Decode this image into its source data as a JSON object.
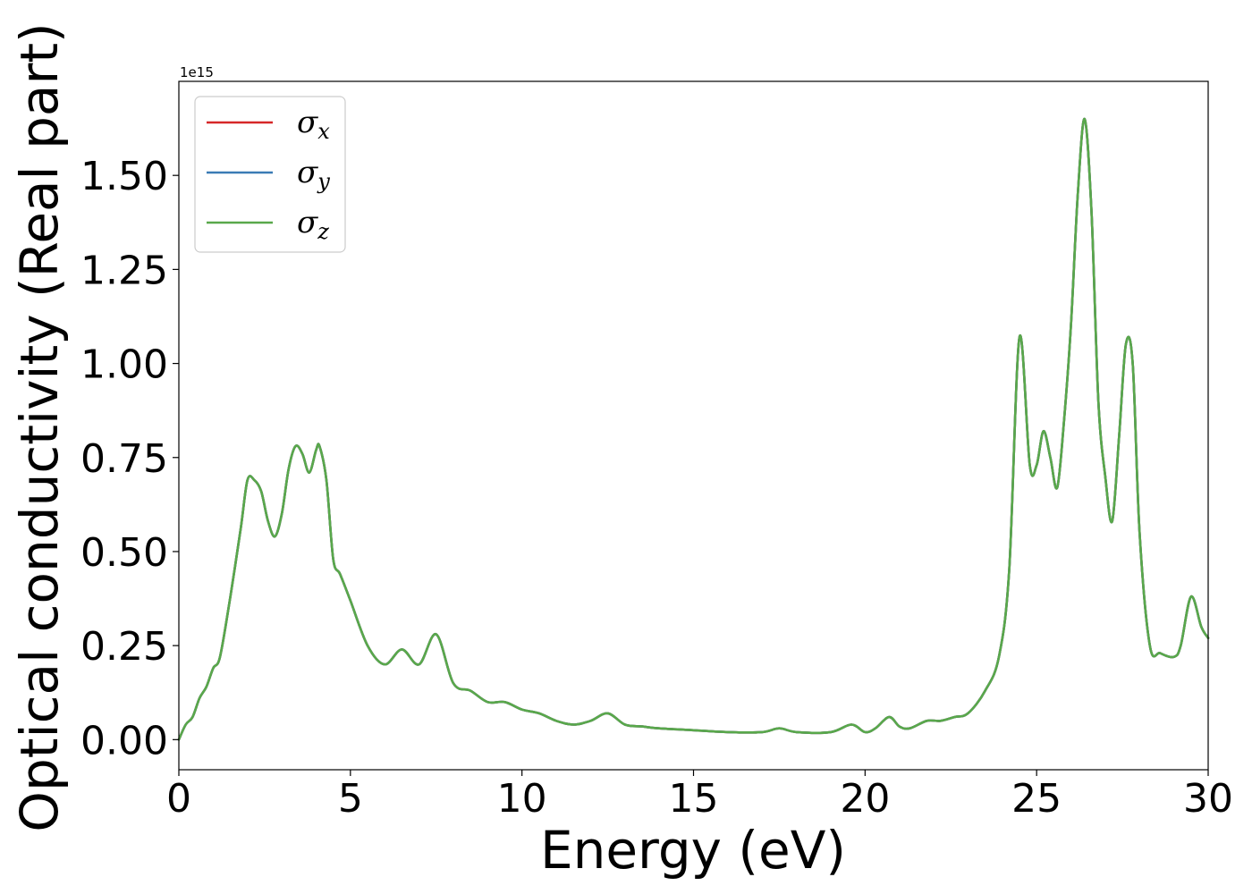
{
  "chart_data": {
    "type": "line",
    "title": "",
    "xlabel": "Energy (eV)",
    "ylabel": "Optical conductivity (Real part)",
    "y_offset_text": "1e15",
    "xlim": [
      0,
      30
    ],
    "ylim": [
      -0.08,
      1.75
    ],
    "xticks": [
      0,
      5,
      10,
      15,
      20,
      25,
      30
    ],
    "xtick_labels": [
      "0",
      "5",
      "10",
      "15",
      "20",
      "25",
      "30"
    ],
    "yticks": [
      0.0,
      0.25,
      0.5,
      0.75,
      1.0,
      1.25,
      1.5
    ],
    "ytick_labels": [
      "0.00",
      "0.25",
      "0.50",
      "0.75",
      "1.00",
      "1.25",
      "1.50"
    ],
    "grid": false,
    "legend_position": "top-left",
    "x": [
      0,
      0.2,
      0.4,
      0.6,
      0.8,
      1.0,
      1.2,
      1.5,
      1.8,
      2.0,
      2.2,
      2.4,
      2.6,
      2.8,
      3.0,
      3.2,
      3.4,
      3.6,
      3.8,
      4.0,
      4.1,
      4.3,
      4.5,
      4.7,
      5.0,
      5.5,
      6.0,
      6.5,
      7.0,
      7.5,
      8.0,
      8.5,
      9.0,
      9.5,
      10.0,
      10.5,
      11.0,
      11.5,
      12.0,
      12.5,
      13.0,
      13.5,
      14.0,
      15.0,
      16.0,
      17.0,
      17.5,
      18.0,
      19.0,
      19.6,
      20.0,
      20.3,
      20.7,
      21.0,
      21.3,
      21.8,
      22.2,
      22.6,
      23.0,
      23.5,
      23.9,
      24.2,
      24.5,
      24.8,
      25.0,
      25.2,
      25.4,
      25.6,
      25.8,
      26.0,
      26.2,
      26.4,
      26.6,
      26.8,
      27.0,
      27.2,
      27.4,
      27.6,
      27.8,
      28.0,
      28.3,
      28.6,
      29.0,
      29.2,
      29.5,
      29.8,
      30.0
    ],
    "series": [
      {
        "name": "σ_x",
        "symbol": "σ",
        "subscript": "x",
        "color": "#d62728",
        "values": [
          0.0,
          0.04,
          0.06,
          0.11,
          0.14,
          0.19,
          0.22,
          0.38,
          0.56,
          0.69,
          0.69,
          0.66,
          0.58,
          0.54,
          0.6,
          0.72,
          0.78,
          0.76,
          0.71,
          0.77,
          0.78,
          0.69,
          0.48,
          0.44,
          0.37,
          0.25,
          0.2,
          0.24,
          0.2,
          0.28,
          0.15,
          0.13,
          0.1,
          0.1,
          0.08,
          0.07,
          0.05,
          0.04,
          0.05,
          0.07,
          0.04,
          0.035,
          0.03,
          0.025,
          0.02,
          0.02,
          0.03,
          0.02,
          0.02,
          0.04,
          0.02,
          0.03,
          0.06,
          0.035,
          0.03,
          0.05,
          0.05,
          0.06,
          0.07,
          0.13,
          0.22,
          0.45,
          1.07,
          0.73,
          0.73,
          0.82,
          0.75,
          0.67,
          0.85,
          1.1,
          1.45,
          1.65,
          1.4,
          0.9,
          0.7,
          0.58,
          0.8,
          1.05,
          1.0,
          0.55,
          0.25,
          0.23,
          0.22,
          0.25,
          0.38,
          0.3,
          0.27
        ]
      },
      {
        "name": "σ_y",
        "symbol": "σ",
        "subscript": "y",
        "color": "#3a7bb5",
        "values": [
          0.0,
          0.04,
          0.06,
          0.11,
          0.14,
          0.19,
          0.22,
          0.38,
          0.56,
          0.69,
          0.69,
          0.66,
          0.58,
          0.54,
          0.6,
          0.72,
          0.78,
          0.76,
          0.71,
          0.77,
          0.78,
          0.69,
          0.48,
          0.44,
          0.37,
          0.25,
          0.2,
          0.24,
          0.2,
          0.28,
          0.15,
          0.13,
          0.1,
          0.1,
          0.08,
          0.07,
          0.05,
          0.04,
          0.05,
          0.07,
          0.04,
          0.035,
          0.03,
          0.025,
          0.02,
          0.02,
          0.03,
          0.02,
          0.02,
          0.04,
          0.02,
          0.03,
          0.06,
          0.035,
          0.03,
          0.05,
          0.05,
          0.06,
          0.07,
          0.13,
          0.22,
          0.45,
          1.07,
          0.73,
          0.73,
          0.82,
          0.75,
          0.67,
          0.85,
          1.1,
          1.45,
          1.65,
          1.4,
          0.9,
          0.7,
          0.58,
          0.8,
          1.05,
          1.0,
          0.55,
          0.25,
          0.23,
          0.22,
          0.25,
          0.38,
          0.3,
          0.27
        ]
      },
      {
        "name": "σ_z",
        "symbol": "σ",
        "subscript": "z",
        "color": "#59a84b",
        "values": [
          0.0,
          0.04,
          0.06,
          0.11,
          0.14,
          0.19,
          0.22,
          0.38,
          0.56,
          0.69,
          0.69,
          0.66,
          0.58,
          0.54,
          0.6,
          0.72,
          0.78,
          0.76,
          0.71,
          0.77,
          0.78,
          0.69,
          0.48,
          0.44,
          0.37,
          0.25,
          0.2,
          0.24,
          0.2,
          0.28,
          0.15,
          0.13,
          0.1,
          0.1,
          0.08,
          0.07,
          0.05,
          0.04,
          0.05,
          0.07,
          0.04,
          0.035,
          0.03,
          0.025,
          0.02,
          0.02,
          0.03,
          0.02,
          0.02,
          0.04,
          0.02,
          0.03,
          0.06,
          0.035,
          0.03,
          0.05,
          0.05,
          0.06,
          0.07,
          0.13,
          0.22,
          0.45,
          1.07,
          0.73,
          0.73,
          0.82,
          0.75,
          0.67,
          0.85,
          1.1,
          1.45,
          1.65,
          1.4,
          0.9,
          0.7,
          0.58,
          0.8,
          1.05,
          1.0,
          0.55,
          0.25,
          0.23,
          0.22,
          0.25,
          0.38,
          0.3,
          0.27
        ]
      }
    ]
  }
}
